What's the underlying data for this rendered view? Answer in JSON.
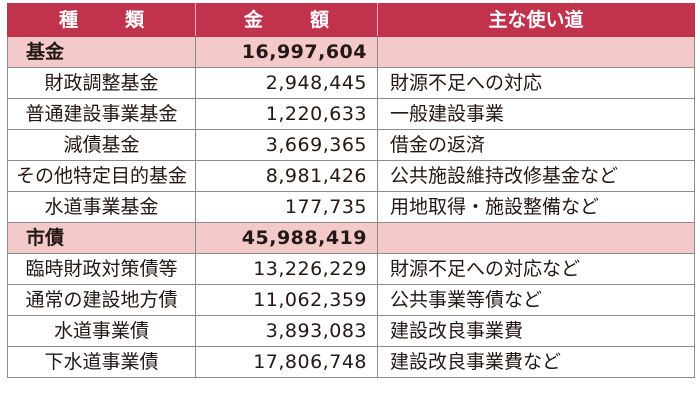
{
  "header": {
    "type": "種　類",
    "amount": "金　額",
    "use": "主な使い道"
  },
  "groups": [
    {
      "name": "基金",
      "amount": "16,997,604",
      "rows": [
        {
          "name": "財政調整基金",
          "amount": "2,948,445",
          "use": "財源不足への対応"
        },
        {
          "name": "普通建設事業基金",
          "amount": "1,220,633",
          "use": "一般建設事業"
        },
        {
          "name": "減債基金",
          "amount": "3,669,365",
          "use": "借金の返済"
        },
        {
          "name": "その他特定目的基金",
          "amount": "8,981,426",
          "use": "公共施設維持改修基金など"
        },
        {
          "name": "水道事業基金",
          "amount": "177,735",
          "use": "用地取得・施設整備など"
        }
      ]
    },
    {
      "name": "市債",
      "amount": "45,988,419",
      "rows": [
        {
          "name": "臨時財政対策債等",
          "amount": "13,226,229",
          "use": "財源不足への対応など"
        },
        {
          "name": "通常の建設地方債",
          "amount": "11,062,359",
          "use": "公共事業等債など"
        },
        {
          "name": "水道事業債",
          "amount": "3,893,083",
          "use": "建設改良事業費"
        },
        {
          "name": "下水道事業債",
          "amount": "17,806,748",
          "use": "建設改良事業費など"
        }
      ]
    }
  ]
}
